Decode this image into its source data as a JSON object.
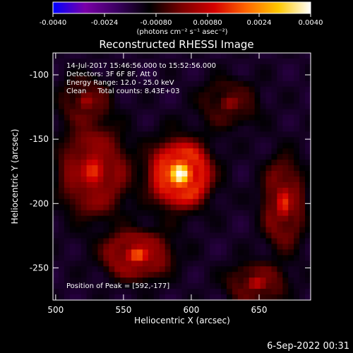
{
  "chart_data": {
    "type": "heatmap",
    "title": "Reconstructed RHESSI Image",
    "xlabel": "Heliocentric X (arcsec)",
    "ylabel": "Heliocentric Y (arcsec)",
    "xlim": [
      498,
      688
    ],
    "ylim": [
      -275,
      -83
    ],
    "x_ticks": [
      "500",
      "550",
      "600",
      "650"
    ],
    "x_tick_values": [
      500,
      550,
      600,
      650
    ],
    "y_ticks": [
      "-100",
      "-150",
      "-200",
      "-250"
    ],
    "y_tick_values": [
      -100,
      -150,
      -200,
      -250
    ],
    "colorbar": {
      "min": -0.004,
      "max": 0.004,
      "tick_labels": [
        "-0.0040",
        "-0.0024",
        "-0.00080",
        "0.00080",
        "0.0024",
        "0.0040"
      ],
      "tick_values": [
        -0.004,
        -0.0024,
        -0.0008,
        0.0008,
        0.0024,
        0.004
      ],
      "unit_label": "(photons cm⁻² s⁻¹ asec⁻²)",
      "colors": [
        "#0000ff",
        "#7a00a8",
        "#3a0060",
        "#000000",
        "#7a0000",
        "#d40000",
        "#ff6600",
        "#ffc800",
        "#ffffff"
      ]
    },
    "annotations": [
      "14-Jul-2017 15:46:56.000 to 15:52:56.000",
      "Detectors: 3F 6F 8F, Att 0",
      "Energy Range: 12.0 - 25.0 keV",
      "Clean     Total counts: 8.43E+03"
    ],
    "peak_label": "Position of Peak = [592,-177]",
    "peak": [
      592,
      -177
    ],
    "sources": [
      {
        "x": 592,
        "y": -177,
        "amp": 0.0042,
        "sx": 14,
        "sy": 16
      },
      {
        "x": 528,
        "y": -175,
        "amp": 0.0022,
        "sx": 16,
        "sy": 22
      },
      {
        "x": 560,
        "y": -240,
        "amp": 0.0024,
        "sx": 16,
        "sy": 12
      },
      {
        "x": 668,
        "y": -200,
        "amp": 0.002,
        "sx": 10,
        "sy": 22
      },
      {
        "x": 648,
        "y": -262,
        "amp": 0.0016,
        "sx": 14,
        "sy": 10
      },
      {
        "x": 628,
        "y": -122,
        "amp": 0.0012,
        "sx": 14,
        "sy": 12
      },
      {
        "x": 522,
        "y": -120,
        "amp": 0.0013,
        "sx": 12,
        "sy": 12
      }
    ]
  },
  "footer": {
    "timestamp": "6-Sep-2022 00:31"
  }
}
